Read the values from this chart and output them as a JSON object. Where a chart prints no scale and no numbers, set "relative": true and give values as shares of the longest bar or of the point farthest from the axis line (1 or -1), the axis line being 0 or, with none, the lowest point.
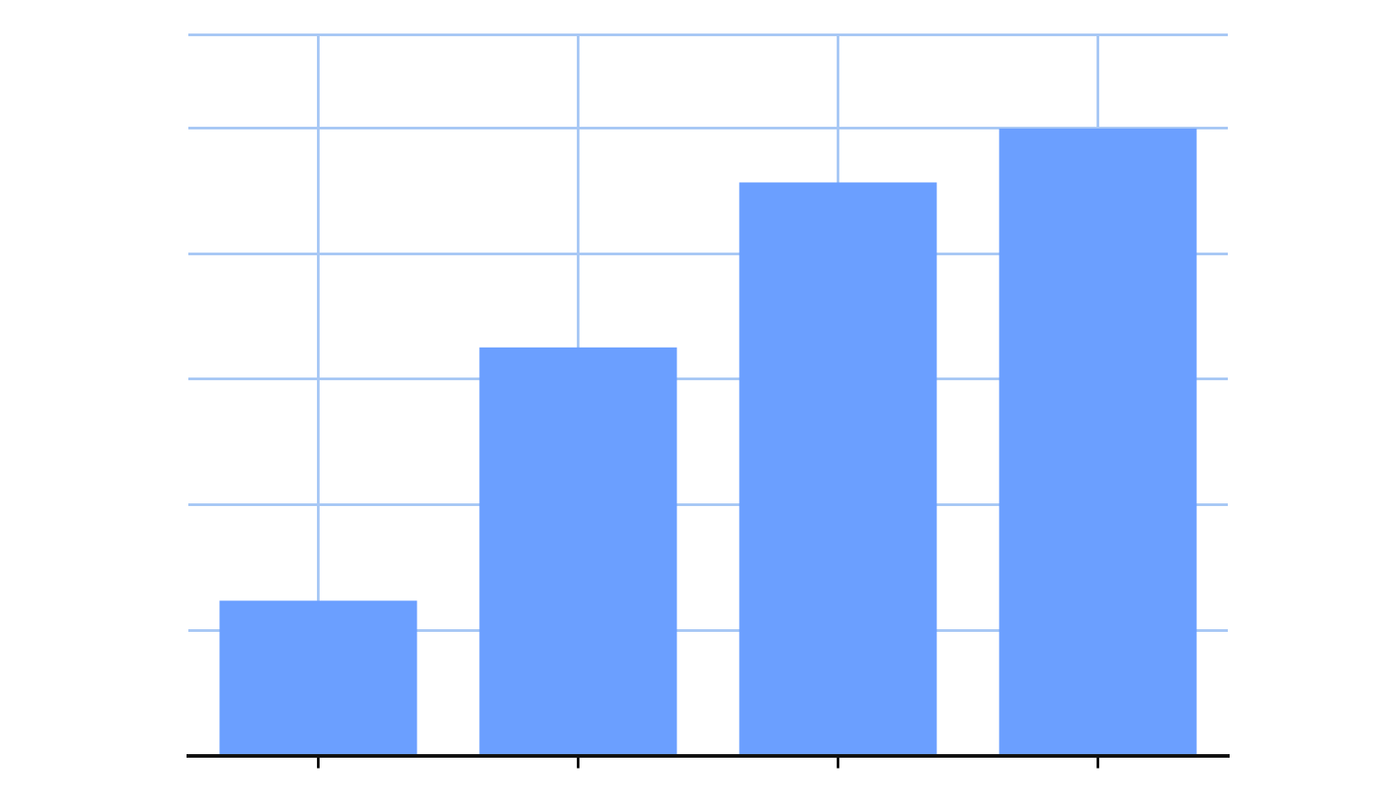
{
  "chart_data": {
    "type": "bar",
    "categories": [
      null,
      null,
      null,
      null
    ],
    "values": [
      0.247,
      0.651,
      0.914,
      1
    ],
    "color": "#6b9fff",
    "relative": true,
    "grid": true,
    "legend": false
  }
}
